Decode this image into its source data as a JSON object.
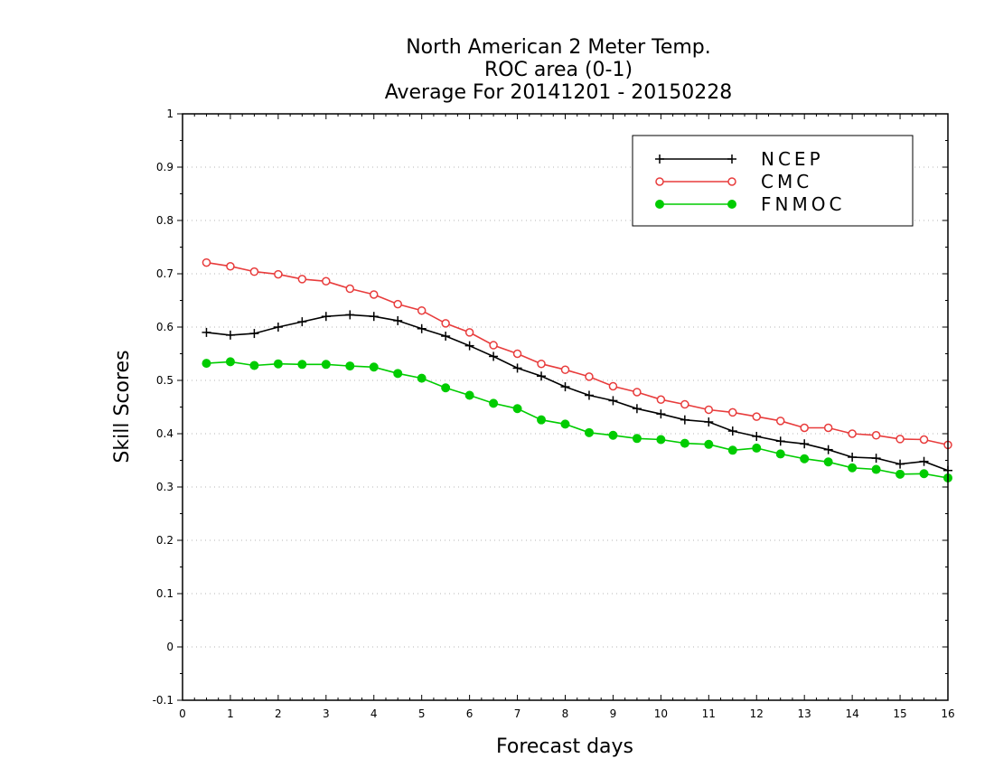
{
  "chart_data": {
    "type": "line",
    "title_lines": [
      "North American 2 Meter Temp.",
      "ROC area (0-1)",
      "Average For 20141201 - 20150228"
    ],
    "xlabel": "Forecast days",
    "ylabel": "Skill Scores",
    "xlim": [
      0,
      16
    ],
    "ylim": [
      -0.1,
      1
    ],
    "x_ticks": [
      "0",
      "1",
      "2",
      "3",
      "4",
      "5",
      "6",
      "7",
      "8",
      "9",
      "10",
      "11",
      "12",
      "13",
      "14",
      "15",
      "16"
    ],
    "y_ticks": [
      "-0.1",
      "0",
      "0.1",
      "0.2",
      "0.3",
      "0.4",
      "0.5",
      "0.6",
      "0.7",
      "0.8",
      "0.9",
      "1"
    ],
    "grid": true,
    "legend_position": "top-right",
    "x": [
      0.5,
      1,
      1.5,
      2,
      2.5,
      3,
      3.5,
      4,
      4.5,
      5,
      5.5,
      6,
      6.5,
      7,
      7.5,
      8,
      8.5,
      9,
      9.5,
      10,
      10.5,
      11,
      11.5,
      12,
      12.5,
      13,
      13.5,
      14,
      14.5,
      15,
      15.5,
      16
    ],
    "series": [
      {
        "name": "NCEP",
        "color": "#000000",
        "marker": "plus",
        "values": [
          0.59,
          0.585,
          0.588,
          0.6,
          0.61,
          0.62,
          0.623,
          0.62,
          0.612,
          0.597,
          0.583,
          0.565,
          0.545,
          0.523,
          0.508,
          0.488,
          0.472,
          0.462,
          0.447,
          0.437,
          0.426,
          0.422,
          0.405,
          0.395,
          0.386,
          0.381,
          0.37,
          0.356,
          0.354,
          0.343,
          0.348,
          0.331
        ]
      },
      {
        "name": "CMC",
        "color": "#e83c3c",
        "marker": "open-circle",
        "values": [
          0.721,
          0.714,
          0.704,
          0.699,
          0.69,
          0.686,
          0.672,
          0.661,
          0.643,
          0.631,
          0.607,
          0.59,
          0.566,
          0.55,
          0.531,
          0.52,
          0.507,
          0.489,
          0.478,
          0.464,
          0.455,
          0.445,
          0.44,
          0.432,
          0.424,
          0.411,
          0.411,
          0.4,
          0.397,
          0.39,
          0.389,
          0.379
        ]
      },
      {
        "name": "FNMOC",
        "color": "#00cc00",
        "marker": "filled-circle",
        "values": [
          0.532,
          0.535,
          0.528,
          0.531,
          0.53,
          0.53,
          0.527,
          0.525,
          0.513,
          0.504,
          0.486,
          0.472,
          0.457,
          0.447,
          0.426,
          0.418,
          0.402,
          0.397,
          0.391,
          0.389,
          0.382,
          0.38,
          0.369,
          0.373,
          0.362,
          0.353,
          0.347,
          0.336,
          0.333,
          0.324,
          0.325,
          0.317
        ]
      }
    ]
  }
}
